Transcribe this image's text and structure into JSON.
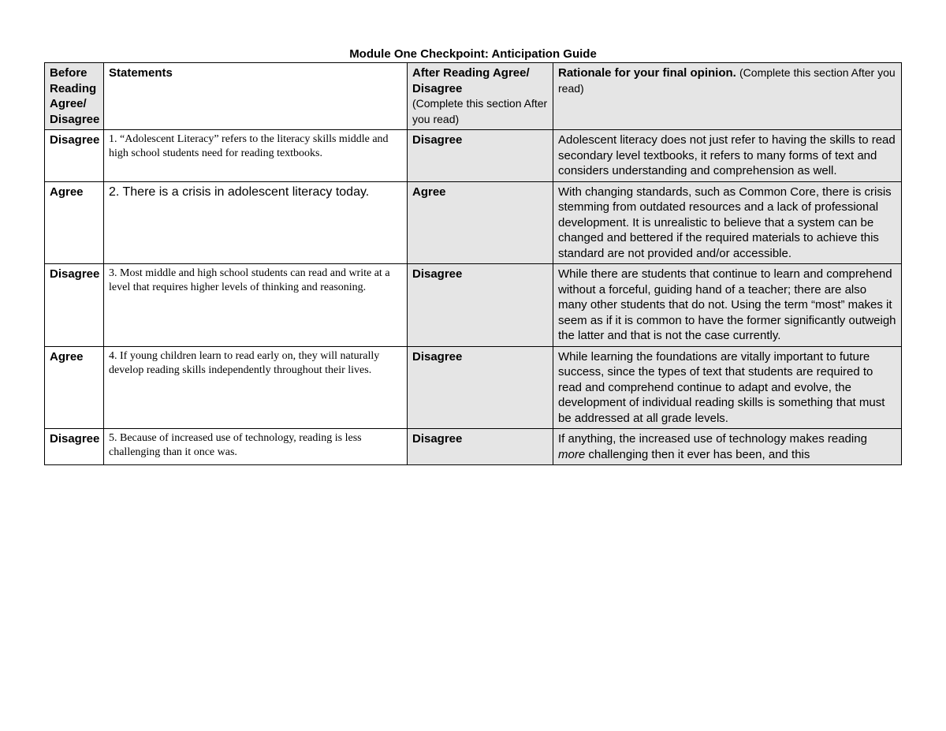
{
  "title": "Module One Checkpoint: Anticipation Guide",
  "columns": {
    "before": "Before Reading Agree/ Disagree",
    "statements": "Statements",
    "after_bold": "After Reading Agree/ Disagree",
    "after_note": "(Complete this section After you read)",
    "rationale_bold": "Rationale for your final opinion. ",
    "rationale_note": "(Complete this section After you read)"
  },
  "rows": [
    {
      "before": "Disagree",
      "statement": "1. “Adolescent Literacy” refers to the literacy skills middle and high school students need for reading textbooks.",
      "stmt_style": "small",
      "after": "Disagree",
      "rationale": "Adolescent literacy does not just refer to having the skills to read secondary level textbooks, it refers to many forms of text and considers understanding and comprehension as well."
    },
    {
      "before": "Agree",
      "statement": "2. There is a crisis in adolescent literacy today.",
      "stmt_style": "large",
      "after": "Agree",
      "rationale": "With changing standards, such as Common Core, there is crisis stemming from outdated resources and a lack of professional development. It is unrealistic to believe that a system can be changed and bettered if the required materials to achieve this standard are not provided and/or accessible."
    },
    {
      "before": "Disagree",
      "statement": "3. Most middle and high school students can read and write at a level that requires higher levels of thinking and reasoning.",
      "stmt_style": "small",
      "after": "Disagree",
      "rationale": "While there are students that continue to learn and comprehend without a forceful, guiding hand of a teacher; there are also many other students that do not. Using the term “most” makes it seem as if it is common to have the former significantly outweigh the latter and that is not the case currently."
    },
    {
      "before": "Agree",
      "statement": "4. If young children learn to read early on, they will naturally develop reading skills independently throughout their lives.",
      "stmt_style": "small",
      "after": "Disagree",
      "rationale": "While learning the foundations are vitally important to future success, since the types of text that students are required to read and comprehend continue to adapt and evolve, the development of individual reading skills is something that must be addressed at all grade levels."
    },
    {
      "before": "Disagree",
      "statement": "5. Because of increased use of technology, reading is less challenging than it once was.",
      "stmt_style": "small",
      "after": "Disagree",
      "rationale_pre": "If anything, the increased use of technology makes reading ",
      "rationale_em": "more",
      "rationale_post": " challenging then it ever has been, and this"
    }
  ]
}
